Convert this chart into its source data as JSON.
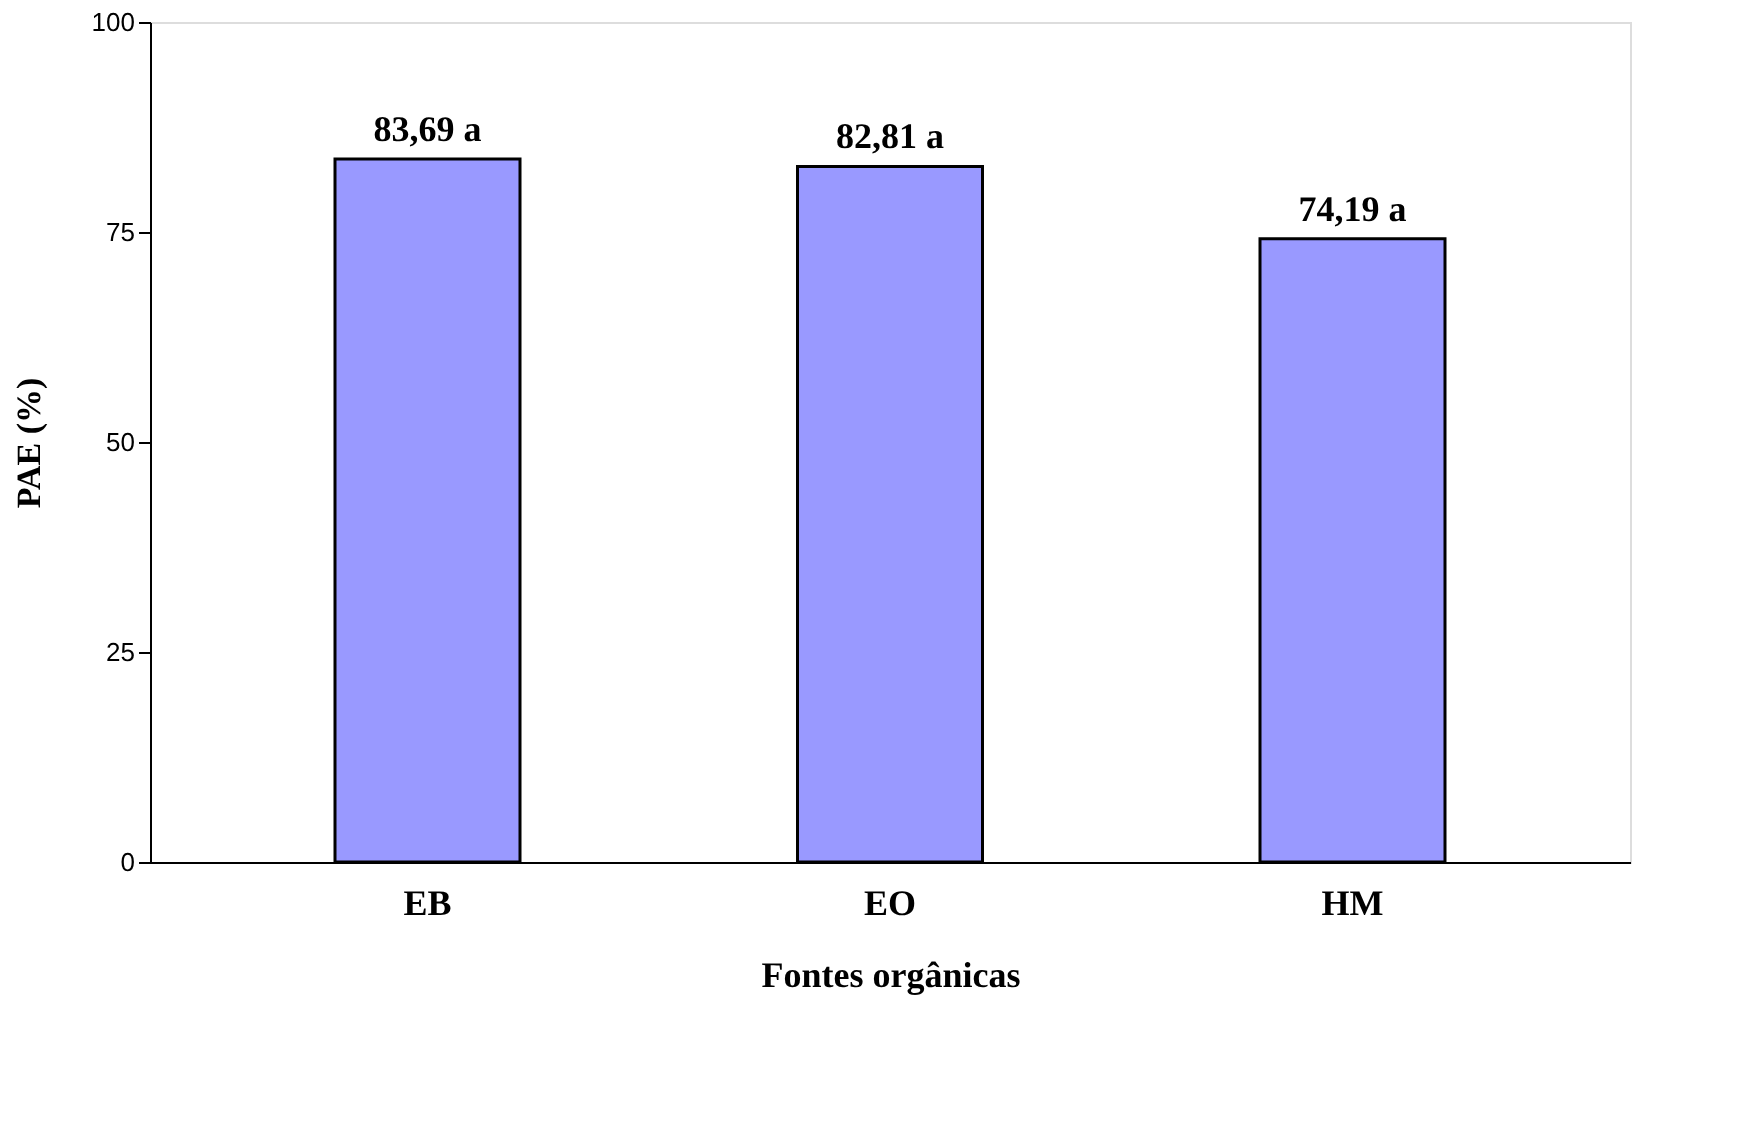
{
  "chart_data": {
    "type": "bar",
    "xlabel": "Fontes orgânicas",
    "ylabel": "PAE (%)",
    "categories": [
      "EB",
      "EO",
      "HM"
    ],
    "values": [
      83.69,
      82.81,
      74.19
    ],
    "value_labels": [
      "83,69 a",
      "82,81 a",
      "74,19 a"
    ],
    "color": "#9999ff",
    "ylim": [
      0,
      100
    ],
    "yticks": [
      0,
      25,
      50,
      75,
      100
    ],
    "grid": false
  }
}
